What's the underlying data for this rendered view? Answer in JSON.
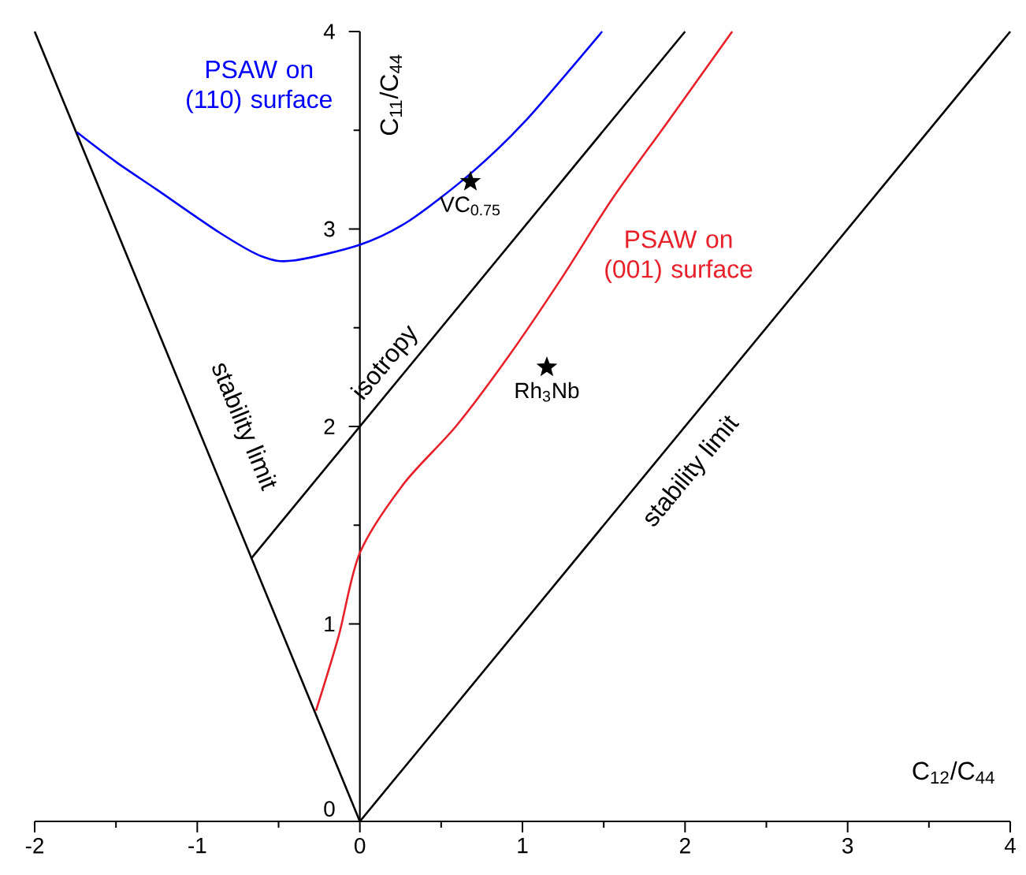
{
  "chart_data": {
    "type": "line",
    "xlabel": "C$_{12}$/C$_{44}$",
    "ylabel": "C$_{11}$/C$_{44}$",
    "xlim": [
      -2,
      4
    ],
    "ylim": [
      0,
      4
    ],
    "xticks": [
      -2,
      -1,
      0,
      1,
      2,
      3,
      4
    ],
    "yticks": [
      0,
      1,
      2,
      3,
      4
    ],
    "grid": false,
    "series": [
      {
        "name": "stability limit",
        "color": "#000000",
        "x": [
          -2,
          0
        ],
        "values": [
          4,
          0
        ]
      },
      {
        "name": "stability limit",
        "color": "#000000",
        "x": [
          0,
          4
        ],
        "values": [
          0,
          4
        ]
      },
      {
        "name": "isotropy",
        "color": "#000000",
        "x": [
          -0.67,
          2
        ],
        "values": [
          1.33,
          4
        ]
      },
      {
        "name": "PSAW on (110) surface",
        "color": "#0000ff",
        "x": [
          -1.74,
          -1.5,
          -1.25,
          -0.86,
          -0.6,
          -0.41,
          0,
          0.3,
          0.68,
          1.01,
          1.49
        ],
        "values": [
          3.49,
          3.34,
          3.2,
          2.98,
          2.86,
          2.84,
          2.92,
          3.04,
          3.28,
          3.54,
          4
        ]
      },
      {
        "name": "PSAW on (001) surface",
        "color": "#e8202a",
        "x": [
          -0.27,
          -0.13,
          0,
          0.27,
          0.59,
          0.91,
          1.24,
          1.55,
          1.9,
          2.29
        ],
        "values": [
          0.56,
          0.94,
          1.36,
          1.71,
          2.0,
          2.35,
          2.75,
          3.15,
          3.55,
          4
        ]
      },
      {
        "type": "scatter",
        "marker": "star",
        "color": "#000000",
        "x": [
          0.68,
          1.15
        ],
        "values": [
          3.24,
          2.3
        ]
      }
    ],
    "annotations": [
      {
        "text": "VC$_{0.75}$",
        "x": 0.68,
        "y": 3.24
      },
      {
        "text": "Rh$_{3}$Nb",
        "x": 1.15,
        "y": 2.3
      }
    ]
  }
}
